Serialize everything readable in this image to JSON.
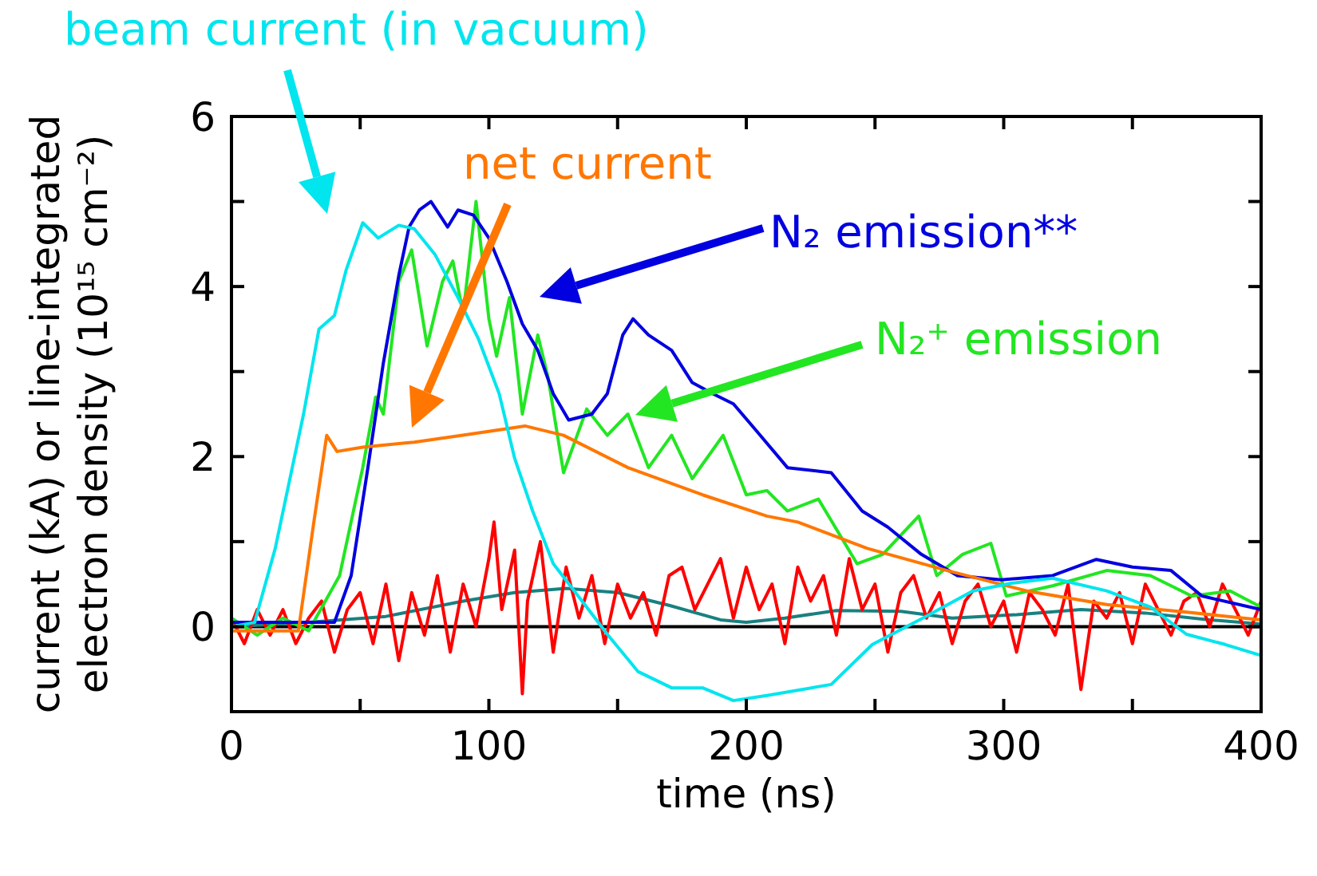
{
  "chart_data": {
    "type": "line",
    "xlabel": "time (ns)",
    "ylabel": "current (kA) or line-integrated electron density (10¹⁵ cm⁻²)",
    "xlim": [
      0,
      400
    ],
    "ylim": [
      -1,
      6
    ],
    "xticks": [
      0,
      {
        "value": 50,
        "label": null
      },
      100,
      {
        "value": 150,
        "label": null
      },
      200,
      {
        "value": 250,
        "label": null
      },
      300,
      {
        "value": 350,
        "label": null
      },
      400
    ],
    "yticks": [
      {
        "value": -1,
        "label": null
      },
      0,
      {
        "value": 1,
        "label": null
      },
      2,
      {
        "value": 3,
        "label": null
      },
      4,
      {
        "value": 5,
        "label": null
      },
      6
    ],
    "grid": false,
    "legend": "top",
    "line_style": "solid",
    "marker": "none",
    "ref_lines": [
      {
        "axis": "y",
        "value": 0,
        "color": "#000000"
      }
    ],
    "series": [
      {
        "name": "beam current (in vacuum)",
        "color": "#00e5ee",
        "x": [
          0,
          9,
          17,
          28,
          34,
          40,
          44.5,
          51,
          57,
          65,
          71,
          79,
          88,
          96,
          104,
          110,
          117,
          125,
          138,
          146,
          158,
          171,
          183,
          195,
          208,
          233,
          249,
          268,
          288,
          303,
          319,
          340,
          357,
          371,
          386,
          400
        ],
        "values": [
          0,
          0.05,
          0.92,
          2.5,
          3.5,
          3.66,
          4.19,
          4.75,
          4.57,
          4.72,
          4.68,
          4.38,
          3.87,
          3.38,
          2.74,
          1.98,
          1.36,
          0.74,
          0.23,
          -0.09,
          -0.53,
          -0.72,
          -0.72,
          -0.87,
          -0.81,
          -0.68,
          -0.21,
          0.09,
          0.42,
          0.51,
          0.57,
          0.42,
          0.23,
          -0.09,
          -0.21,
          -0.34
        ]
      },
      {
        "name": "net current",
        "color": "#ff7700",
        "x": [
          0,
          26,
          32,
          37,
          41,
          51,
          71,
          92,
          114,
          129,
          154,
          183,
          208,
          220,
          247,
          278,
          309,
          340,
          371,
          400
        ],
        "values": [
          -0.05,
          -0.05,
          1.23,
          2.25,
          2.06,
          2.11,
          2.17,
          2.26,
          2.36,
          2.25,
          1.87,
          1.55,
          1.3,
          1.23,
          0.92,
          0.66,
          0.42,
          0.26,
          0.17,
          0.08
        ]
      },
      {
        "name": "N₂ emission**",
        "color": "#0000e0",
        "x": [
          0,
          20,
          40,
          46.5,
          53,
          59,
          65,
          69,
          73,
          77.5,
          84,
          88,
          94,
          100,
          107,
          113,
          119,
          125,
          131,
          140,
          146,
          152,
          156,
          162,
          171,
          179,
          187,
          195,
          204,
          216,
          233,
          245,
          255,
          268,
          282,
          299,
          319,
          336,
          350,
          365,
          377,
          400
        ],
        "values": [
          0.05,
          0.05,
          0.05,
          0.6,
          1.87,
          3.1,
          4.13,
          4.7,
          4.9,
          5.0,
          4.7,
          4.9,
          4.84,
          4.57,
          4.06,
          3.56,
          3.25,
          2.74,
          2.43,
          2.5,
          2.74,
          3.43,
          3.62,
          3.43,
          3.25,
          2.87,
          2.74,
          2.62,
          2.3,
          1.87,
          1.81,
          1.36,
          1.17,
          0.85,
          0.6,
          0.55,
          0.6,
          0.79,
          0.7,
          0.66,
          0.36,
          0.2
        ]
      },
      {
        "name": "N₂⁺ emission",
        "color": "#22e622",
        "x": [
          0,
          10,
          20,
          30,
          42,
          51,
          56,
          59,
          65,
          70,
          76,
          82,
          86,
          90,
          95,
          100,
          103,
          108,
          113,
          119,
          123,
          129,
          138,
          146,
          154,
          162,
          171,
          179,
          191,
          200,
          208,
          216,
          228,
          243,
          253,
          267,
          274,
          284,
          295,
          301,
          319,
          340,
          357,
          373,
          388,
          400
        ],
        "values": [
          0.1,
          -0.1,
          0.1,
          -0.05,
          0.6,
          1.87,
          2.7,
          2.5,
          4.06,
          4.43,
          3.3,
          4.06,
          4.3,
          3.68,
          5.0,
          3.62,
          3.18,
          3.87,
          2.5,
          3.43,
          2.93,
          1.81,
          2.56,
          2.25,
          2.5,
          1.87,
          2.25,
          1.74,
          2.25,
          1.55,
          1.6,
          1.36,
          1.5,
          0.74,
          0.85,
          1.3,
          0.6,
          0.85,
          0.98,
          0.36,
          0.48,
          0.66,
          0.6,
          0.36,
          0.42,
          0.23
        ]
      },
      {
        "color": "#ff0000",
        "x": [
          0,
          5,
          10,
          15,
          20,
          25,
          30,
          35,
          40,
          45,
          50,
          55,
          60,
          65,
          70,
          75,
          80,
          85,
          90,
          95,
          100,
          102,
          105,
          110,
          113,
          115,
          120,
          125,
          130,
          135,
          140,
          145,
          150,
          155,
          160,
          165,
          170,
          175,
          180,
          185,
          190,
          195,
          200,
          205,
          210,
          215,
          220,
          225,
          230,
          235,
          240,
          245,
          250,
          255,
          260,
          265,
          270,
          275,
          280,
          285,
          290,
          295,
          300,
          305,
          310,
          315,
          320,
          325,
          330,
          335,
          340,
          345,
          350,
          355,
          360,
          365,
          370,
          375,
          380,
          385,
          390,
          395,
          400
        ],
        "values": [
          0.1,
          -0.2,
          0.2,
          -0.1,
          0.2,
          -0.2,
          0.1,
          0.3,
          -0.3,
          0.2,
          0.4,
          -0.2,
          0.5,
          -0.4,
          0.4,
          -0.1,
          0.6,
          -0.3,
          0.5,
          0.0,
          0.8,
          1.23,
          0.2,
          0.9,
          -0.79,
          0.3,
          1.0,
          -0.3,
          0.7,
          0.1,
          0.6,
          -0.2,
          0.5,
          0.1,
          0.4,
          -0.1,
          0.6,
          0.7,
          0.2,
          0.5,
          0.8,
          0.1,
          0.7,
          0.2,
          0.5,
          -0.2,
          0.7,
          0.3,
          0.6,
          -0.1,
          0.8,
          0.2,
          0.5,
          -0.3,
          0.4,
          0.6,
          0.1,
          0.4,
          -0.2,
          0.3,
          0.5,
          0.0,
          0.3,
          -0.3,
          0.4,
          0.2,
          -0.1,
          0.5,
          -0.74,
          0.3,
          0.1,
          0.4,
          -0.2,
          0.5,
          0.2,
          -0.1,
          0.3,
          0.4,
          0.0,
          0.5,
          0.2,
          -0.1,
          0.3
        ]
      },
      {
        "color": "#1a8080",
        "x": [
          0,
          30,
          60,
          90,
          110,
          130,
          150,
          170,
          190,
          200,
          215,
          235,
          260,
          280,
          305,
          330,
          355,
          380,
          400
        ],
        "values": [
          0.0,
          0.05,
          0.12,
          0.3,
          0.4,
          0.45,
          0.4,
          0.25,
          0.08,
          0.05,
          0.1,
          0.19,
          0.18,
          0.1,
          0.14,
          0.2,
          0.16,
          0.08,
          0.03
        ]
      }
    ]
  }
}
